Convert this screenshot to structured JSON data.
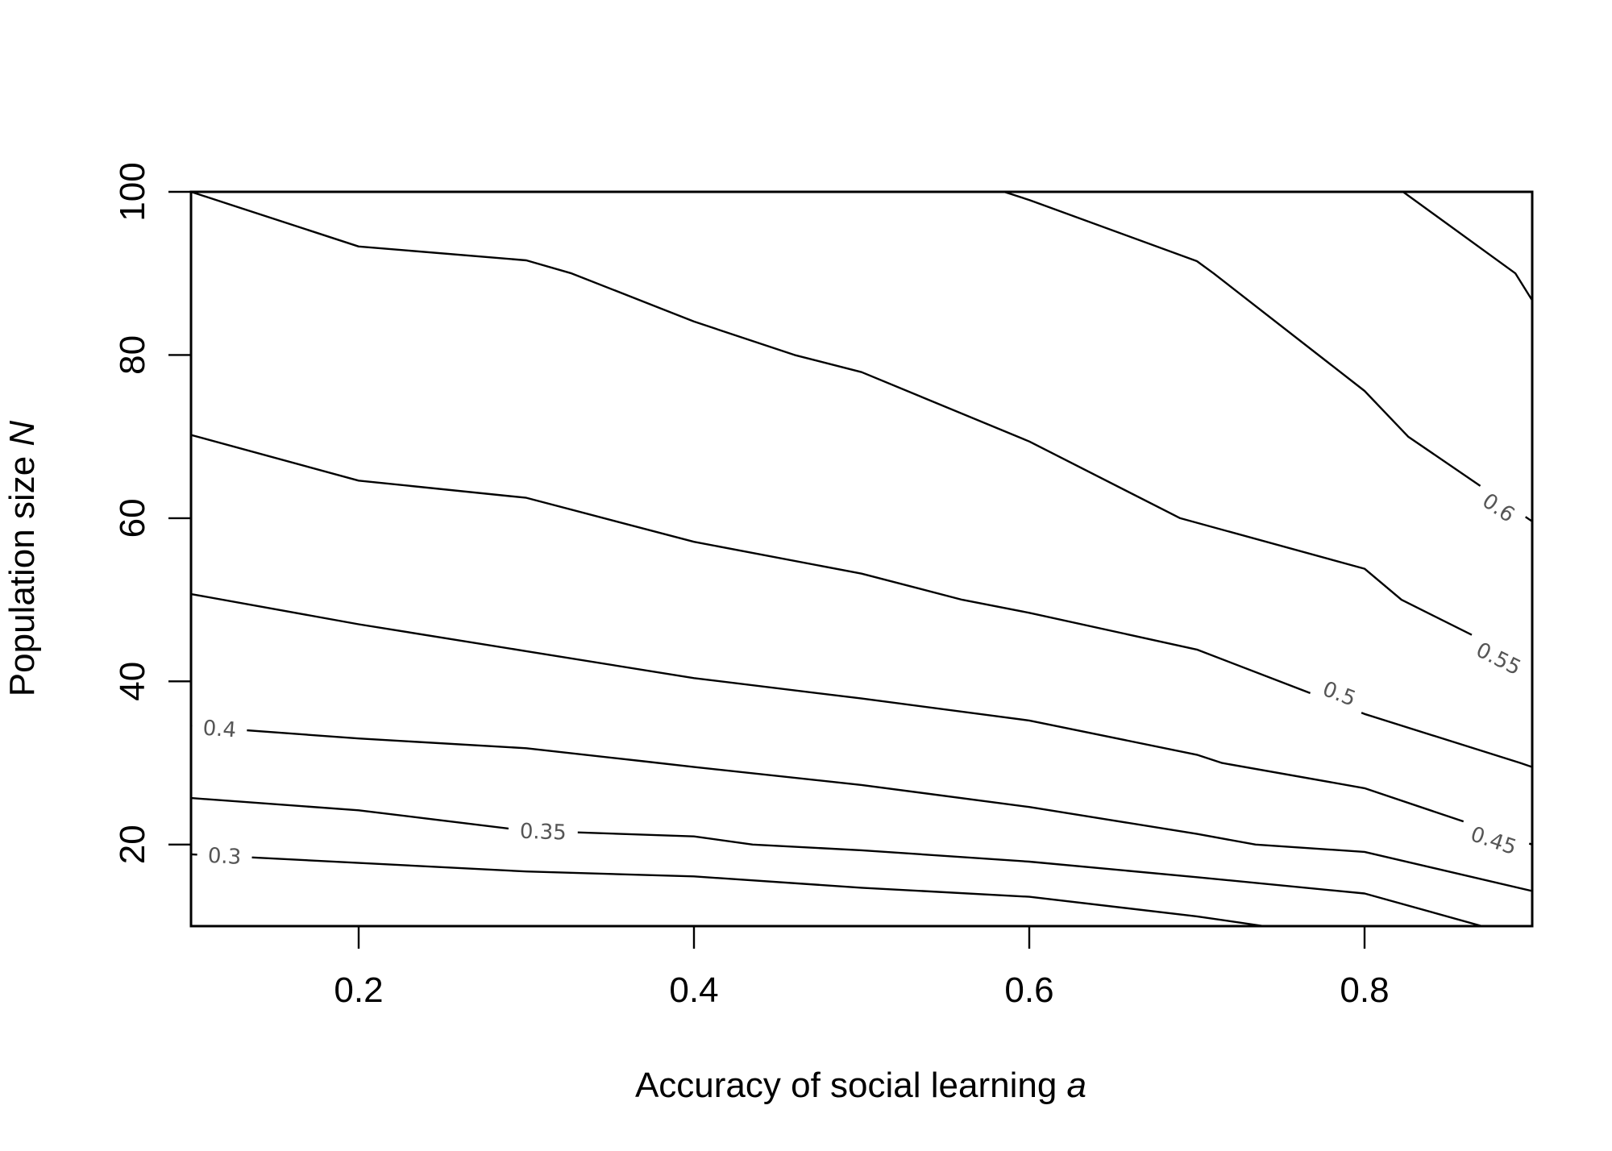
{
  "chart_data": {
    "type": "contour",
    "xlabel": "Accuracy of social learning",
    "xlabel_var": "a",
    "ylabel": "Population size",
    "ylabel_var": "N",
    "xlim": [
      0.1,
      0.9
    ],
    "ylim": [
      10,
      100
    ],
    "xticks": [
      "0.2",
      "0.4",
      "0.6",
      "0.8"
    ],
    "yticks": [
      "20",
      "40",
      "60",
      "80",
      "100"
    ],
    "grid": false,
    "legend": "none",
    "contours": [
      {
        "level": "0.3",
        "label_at": [
          0.12,
          18.6
        ],
        "points": [
          [
            0.1,
            18.8
          ],
          [
            0.3,
            16.7
          ],
          [
            0.4,
            16.1
          ],
          [
            0.5,
            14.7
          ],
          [
            0.6,
            13.6
          ],
          [
            0.7,
            11.2
          ],
          [
            0.74,
            10
          ]
        ]
      },
      {
        "level": "0.35",
        "label_at": [
          0.31,
          21.6
        ],
        "points": [
          [
            0.1,
            25.7
          ],
          [
            0.2,
            24.2
          ],
          [
            0.3,
            21.7
          ],
          [
            0.4,
            21.0
          ],
          [
            0.435,
            20.0
          ],
          [
            0.5,
            19.3
          ],
          [
            0.6,
            17.9
          ],
          [
            0.7,
            16.0
          ],
          [
            0.8,
            14.0
          ],
          [
            0.87,
            10
          ]
        ]
      },
      {
        "level": "0.4",
        "label_at": [
          0.117,
          34.2
        ],
        "points": [
          [
            0.1,
            34.5
          ],
          [
            0.2,
            33.0
          ],
          [
            0.3,
            31.8
          ],
          [
            0.37,
            30.2
          ],
          [
            0.4,
            29.5
          ],
          [
            0.5,
            27.3
          ],
          [
            0.6,
            24.6
          ],
          [
            0.7,
            21.3
          ],
          [
            0.735,
            20.0
          ],
          [
            0.8,
            19.1
          ],
          [
            0.9,
            14.3
          ]
        ]
      },
      {
        "level": "0.45",
        "label_at": [
          0.877,
          20.5
        ],
        "points": [
          [
            0.1,
            50.7
          ],
          [
            0.2,
            47.0
          ],
          [
            0.3,
            43.7
          ],
          [
            0.4,
            40.4
          ],
          [
            0.5,
            37.9
          ],
          [
            0.6,
            35.2
          ],
          [
            0.7,
            31.0
          ],
          [
            0.715,
            30.0
          ],
          [
            0.8,
            26.9
          ],
          [
            0.9,
            20.0
          ]
        ]
      },
      {
        "level": "0.5",
        "label_at": [
          0.785,
          38.5
        ],
        "points": [
          [
            0.1,
            70.2
          ],
          [
            0.2,
            64.6
          ],
          [
            0.3,
            62.5
          ],
          [
            0.4,
            57.1
          ],
          [
            0.5,
            53.2
          ],
          [
            0.56,
            50.0
          ],
          [
            0.6,
            48.4
          ],
          [
            0.7,
            43.9
          ],
          [
            0.8,
            36.0
          ],
          [
            0.893,
            30.0
          ],
          [
            0.9,
            29.5
          ]
        ]
      },
      {
        "level": "0.55",
        "label_at": [
          0.88,
          42.8
        ],
        "points": [
          [
            0.1,
            100
          ],
          [
            0.2,
            93.3
          ],
          [
            0.3,
            91.6
          ],
          [
            0.327,
            90.0
          ],
          [
            0.4,
            84.1
          ],
          [
            0.46,
            80.0
          ],
          [
            0.5,
            77.9
          ],
          [
            0.6,
            69.4
          ],
          [
            0.69,
            60.0
          ],
          [
            0.8,
            53.8
          ],
          [
            0.822,
            50.0
          ],
          [
            0.9,
            42.0
          ]
        ]
      },
      {
        "level": "0.6",
        "label_at": [
          0.88,
          61.3
        ],
        "points": [
          [
            0.585,
            100
          ],
          [
            0.6,
            99.0
          ],
          [
            0.7,
            91.5
          ],
          [
            0.71,
            90.0
          ],
          [
            0.8,
            75.6
          ],
          [
            0.826,
            70.0
          ],
          [
            0.9,
            59.6
          ]
        ]
      },
      {
        "level": "",
        "label_at": null,
        "points": [
          [
            0.823,
            100
          ],
          [
            0.89,
            90.0
          ],
          [
            0.9,
            86.7
          ]
        ]
      }
    ]
  }
}
